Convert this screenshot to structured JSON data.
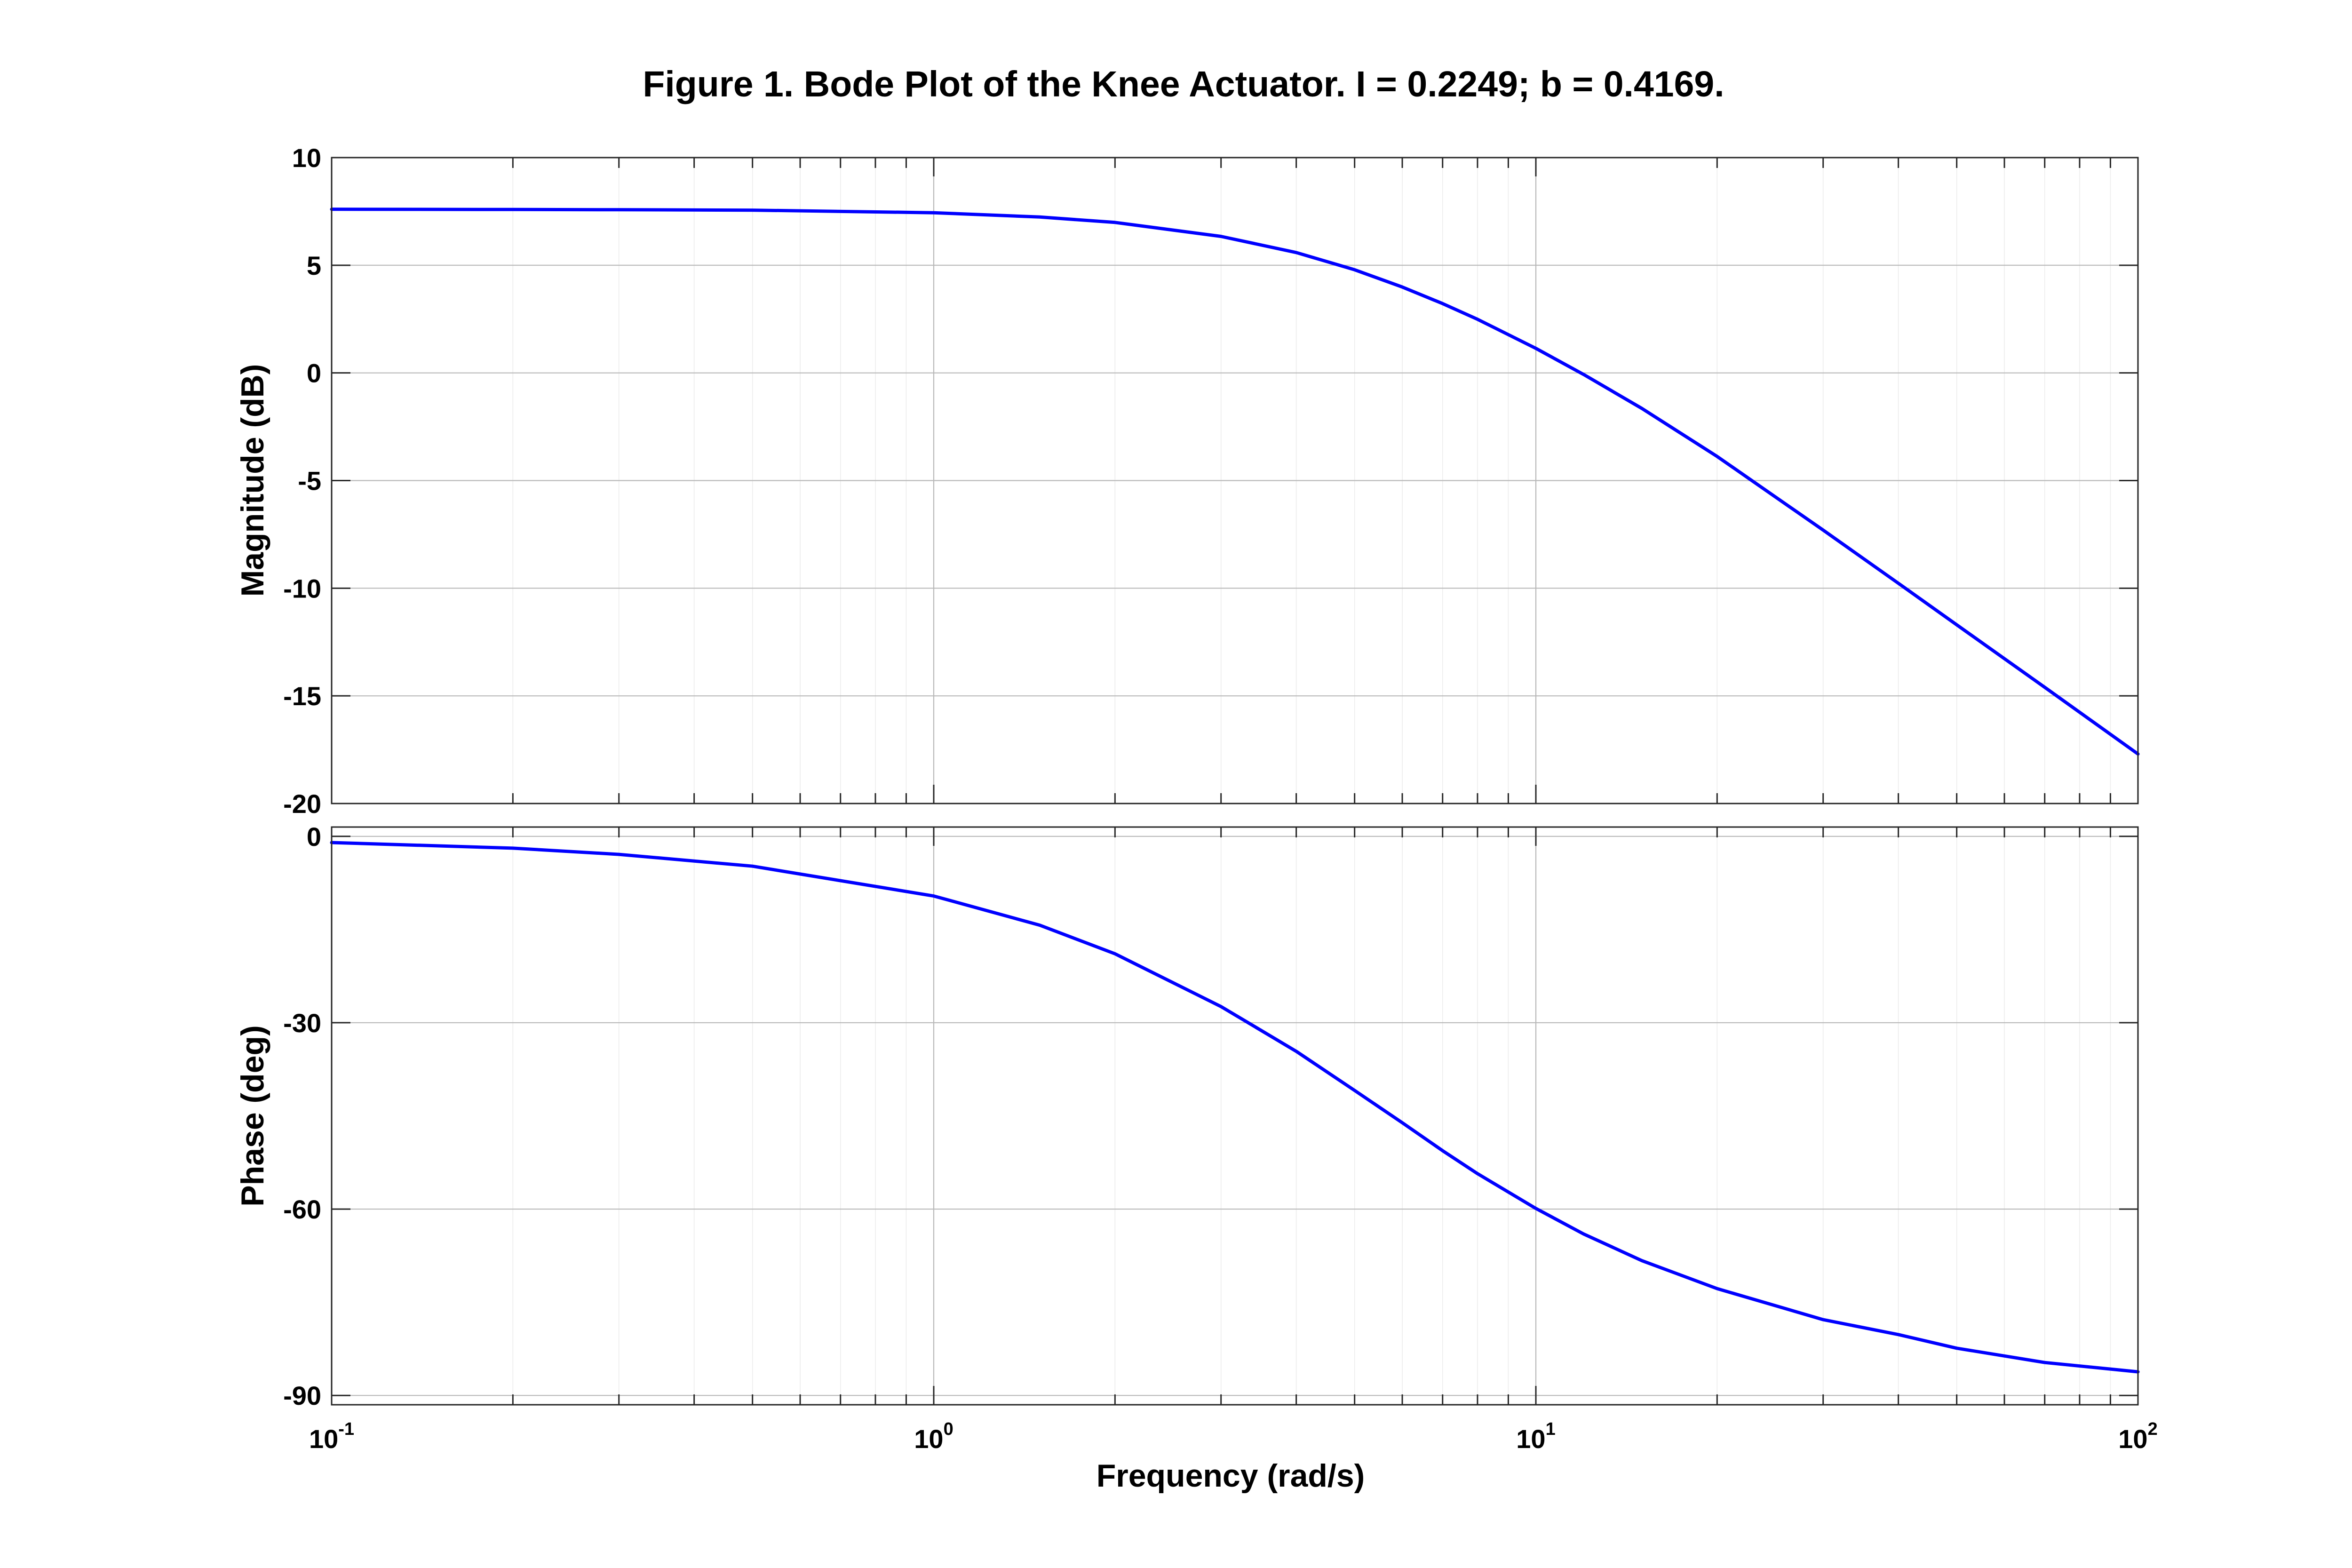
{
  "chart_data": {
    "type": "line",
    "title": "Figure 1. Bode Plot of the Knee Actuator. I = 0.2249; b = 0.4169.",
    "xlabel": "Frequency   (rad/s)",
    "xscale": "log",
    "xlim": [
      0.1,
      100
    ],
    "xticks": [
      {
        "base": "10",
        "exp": "-1",
        "value": 0.1
      },
      {
        "base": "10",
        "exp": "0",
        "value": 1
      },
      {
        "base": "10",
        "exp": "1",
        "value": 10
      },
      {
        "base": "10",
        "exp": "2",
        "value": 100
      }
    ],
    "grid": true,
    "line_color": "#0000ff",
    "panels": [
      {
        "name": "magnitude",
        "ylabel": "Magnitude  (dB)",
        "ylim": [
          -20,
          10
        ],
        "yticks": [
          "-20",
          "-15",
          "-10",
          "-5",
          "0",
          "5",
          "10"
        ],
        "ytick_values": [
          -20,
          -15,
          -10,
          -5,
          0,
          5,
          10
        ],
        "series": [
          {
            "x": [
              0.1,
              0.2,
              0.3,
              0.5,
              1,
              1.5,
              2,
              3,
              4,
              5,
              6,
              7,
              8,
              10,
              12,
              15,
              20,
              30,
              40,
              50,
              70,
              100
            ],
            "y": [
              7.6,
              7.59,
              7.58,
              7.56,
              7.44,
              7.24,
              6.99,
              6.34,
              5.59,
              4.79,
              3.99,
              3.22,
              2.49,
              1.14,
              -0.07,
              -1.65,
              -3.88,
              -7.3,
              -9.77,
              -11.7,
              -14.6,
              -17.7
            ]
          }
        ]
      },
      {
        "name": "phase",
        "ylabel": "Phase  (deg)",
        "ylim": [
          -91.5,
          1.5
        ],
        "yticks": [
          "0",
          "-30",
          "-60",
          "-90"
        ],
        "ytick_values": [
          0,
          -30,
          -60,
          -90
        ],
        "series": [
          {
            "x": [
              0.1,
              0.2,
              0.3,
              0.5,
              1,
              1.5,
              2,
              3,
              4,
              5,
              6,
              7,
              8,
              10,
              12,
              15,
              20,
              30,
              40,
              50,
              70,
              100
            ],
            "y": [
              -1.0,
              -1.9,
              -2.9,
              -4.8,
              -9.6,
              -14.3,
              -18.9,
              -27.4,
              -34.6,
              -40.9,
              -46.1,
              -50.6,
              -54.3,
              -59.9,
              -64.0,
              -68.3,
              -72.8,
              -77.8,
              -80.2,
              -82.4,
              -84.7,
              -86.2
            ]
          }
        ]
      }
    ]
  }
}
